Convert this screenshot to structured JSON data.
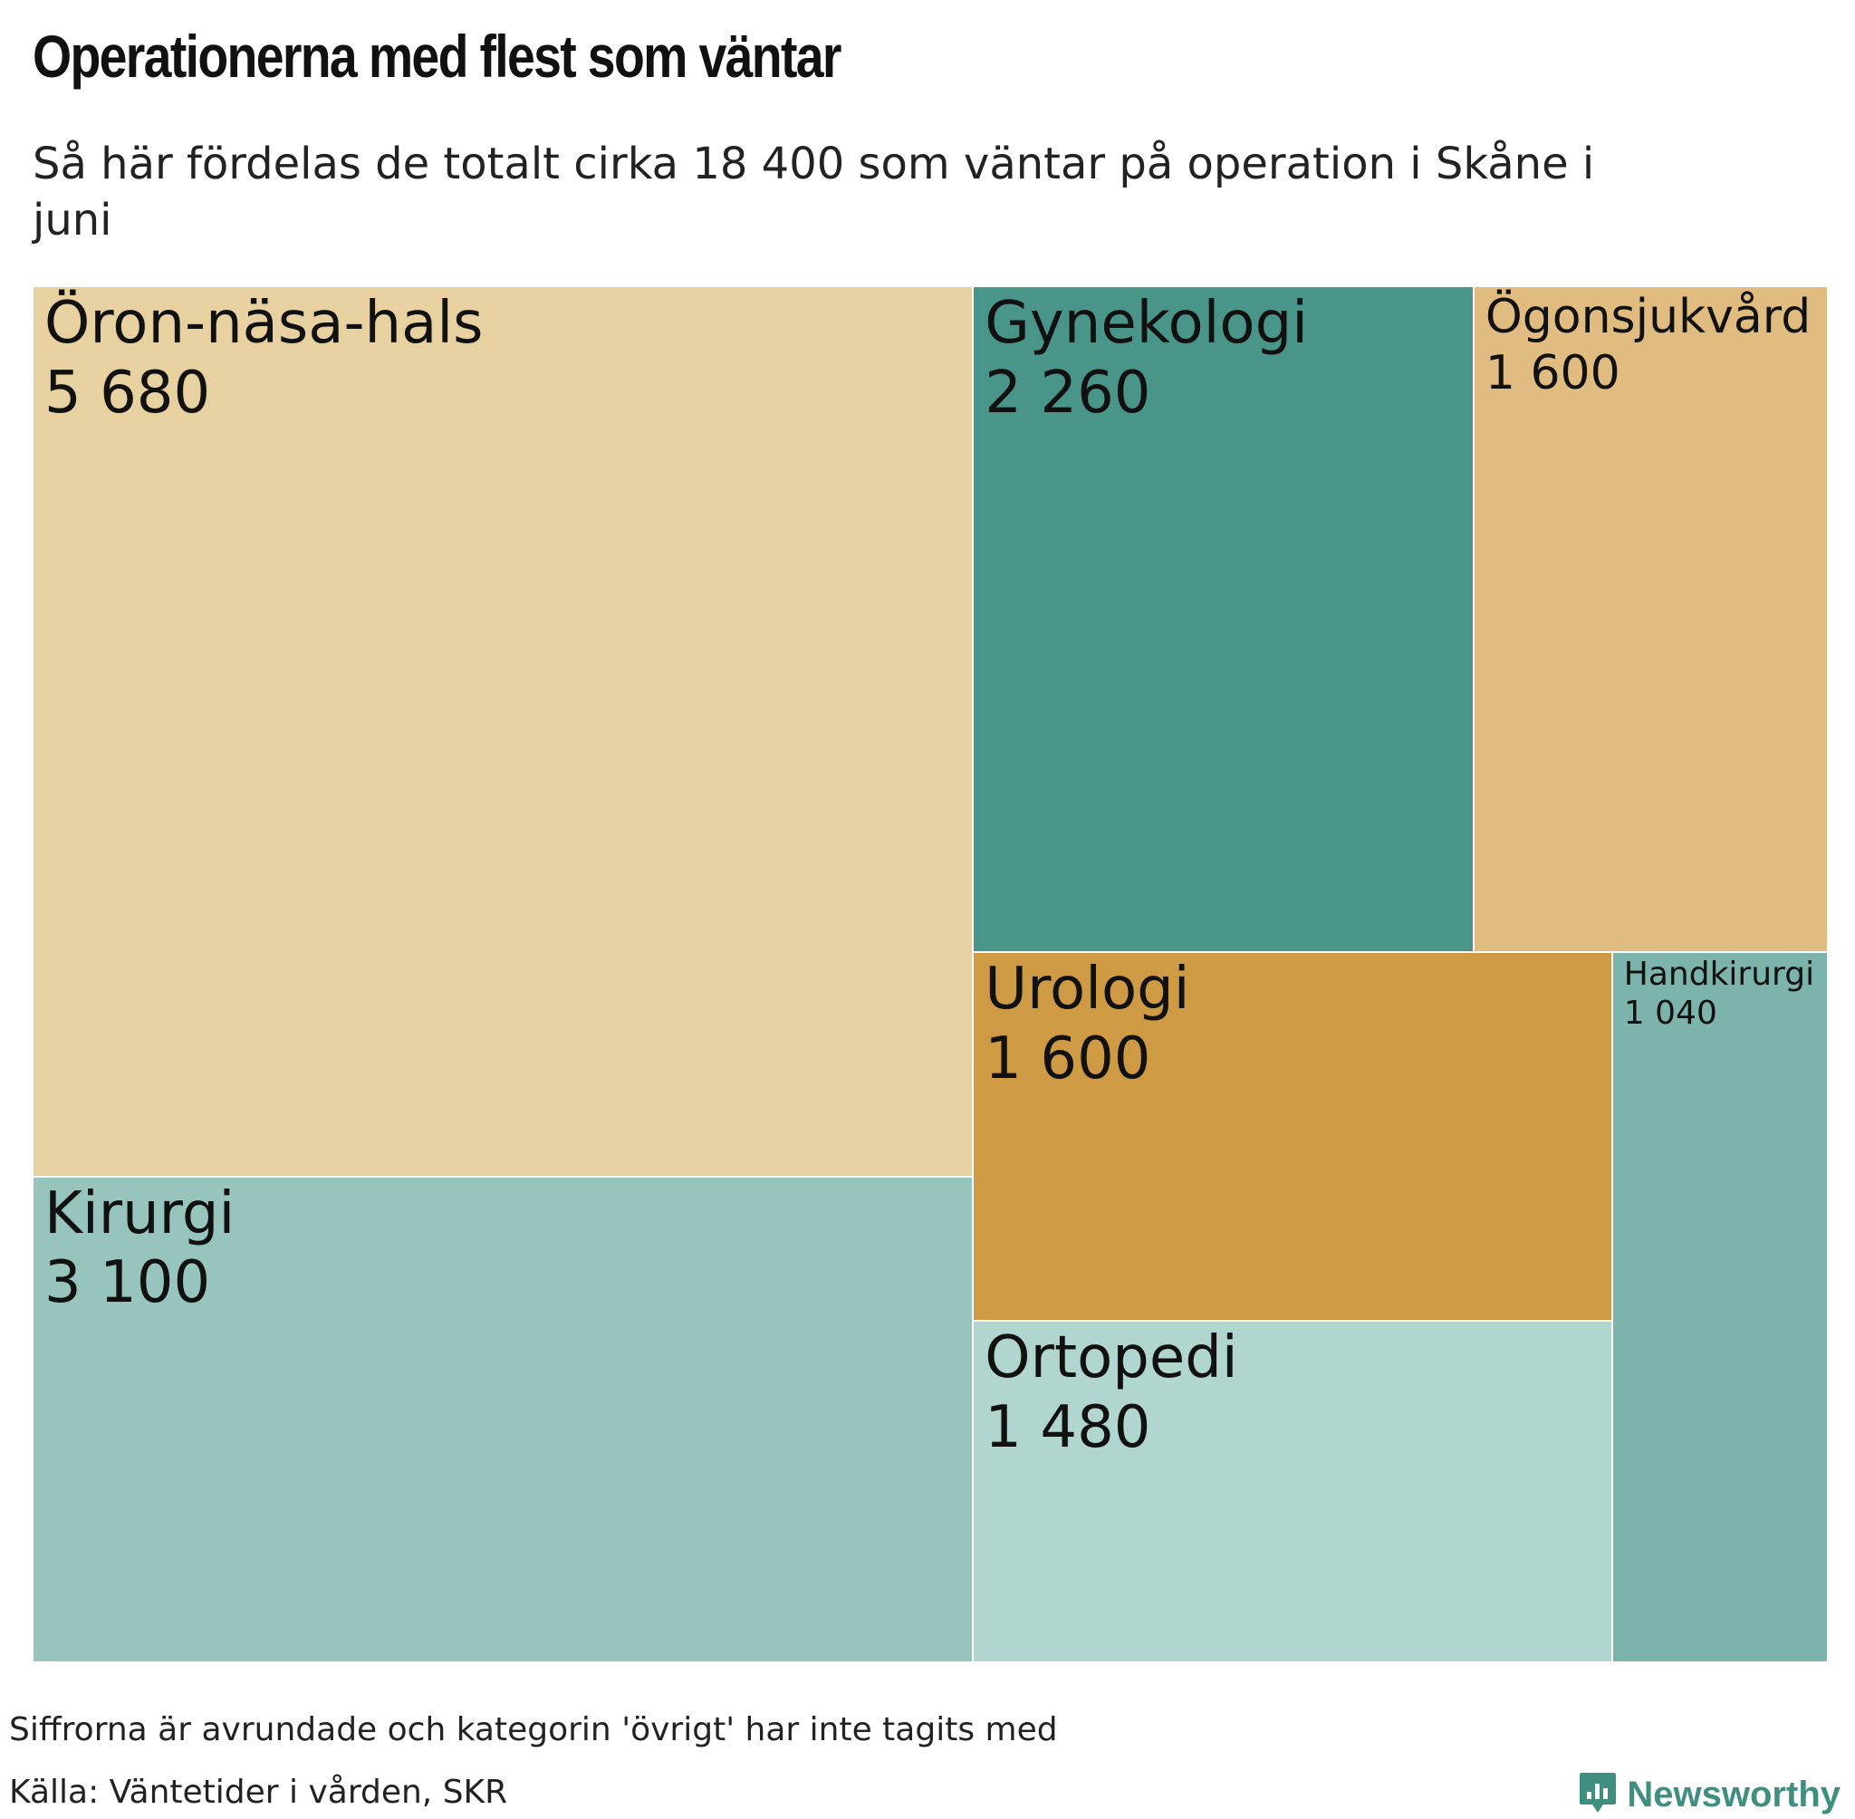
{
  "title": "Operationerna med flest som väntar",
  "subtitle": "Så här fördelas de totalt cirka 18 400 som väntar på operation i Skåne i juni",
  "note": "Siffrorna är avrundade och kategorin 'övrigt' har inte tagits med",
  "source": "Källa: Väntetider i vården, SKR",
  "brand": "Newsworthy",
  "chart_data": {
    "type": "treemap",
    "value_labels": true,
    "items": [
      {
        "label": "Öron-näsa-hals",
        "value_text": "5 680",
        "value": 5680,
        "color": "#e8d1a0"
      },
      {
        "label": "Kirurgi",
        "value_text": "3 100",
        "value": 3100,
        "color": "#98c4be"
      },
      {
        "label": "Gynekologi",
        "value_text": "2 260",
        "value": 2260,
        "color": "#4a958a"
      },
      {
        "label": "Ögonsjukvård",
        "value_text": "1 600",
        "value": 1600,
        "color": "#e1bc80"
      },
      {
        "label": "Urologi",
        "value_text": "1 600",
        "value": 1600,
        "color": "#cf9a44"
      },
      {
        "label": "Ortopedi",
        "value_text": "1 480",
        "value": 1480,
        "color": "#b1d6cf"
      },
      {
        "label": "Handkirurgi",
        "value_text": "1 040",
        "value": 1040,
        "color": "#7cb3aa"
      }
    ]
  }
}
